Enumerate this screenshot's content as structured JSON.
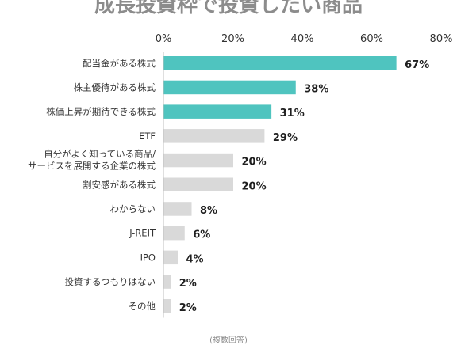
{
  "footnote": "(複数回答)",
  "colors": {
    "highlight": "#4fc4bf",
    "normal": "#d9d9d9",
    "axis": "#bfbfbf"
  },
  "chart_data": {
    "type": "bar",
    "orientation": "horizontal",
    "title": "成長投資枠で投資したい商品",
    "xlim": [
      0,
      80
    ],
    "xticks": [
      "0%",
      "20%",
      "40%",
      "60%",
      "80%"
    ],
    "tick_values": [
      0,
      20,
      40,
      60,
      80
    ],
    "grid": false,
    "categories": [
      [
        "配当金がある株式"
      ],
      [
        "株主優待がある株式"
      ],
      [
        "株価上昇が期待できる株式"
      ],
      [
        "ETF"
      ],
      [
        "自分がよく知っている商品/",
        "サービスを展開する企業の株式"
      ],
      [
        "割安感がある株式"
      ],
      [
        "わからない"
      ],
      [
        "J-REIT"
      ],
      [
        "IPO"
      ],
      [
        "投資するつもりはない"
      ],
      [
        "その他"
      ]
    ],
    "values": [
      67,
      38,
      31,
      29,
      20,
      20,
      8,
      6,
      4,
      2,
      2
    ],
    "value_labels": [
      "67%",
      "38%",
      "31%",
      "29%",
      "20%",
      "20%",
      "8%",
      "6%",
      "4%",
      "2%",
      "2%"
    ],
    "highlighted": [
      true,
      true,
      true,
      false,
      false,
      false,
      false,
      false,
      false,
      false,
      false
    ]
  }
}
